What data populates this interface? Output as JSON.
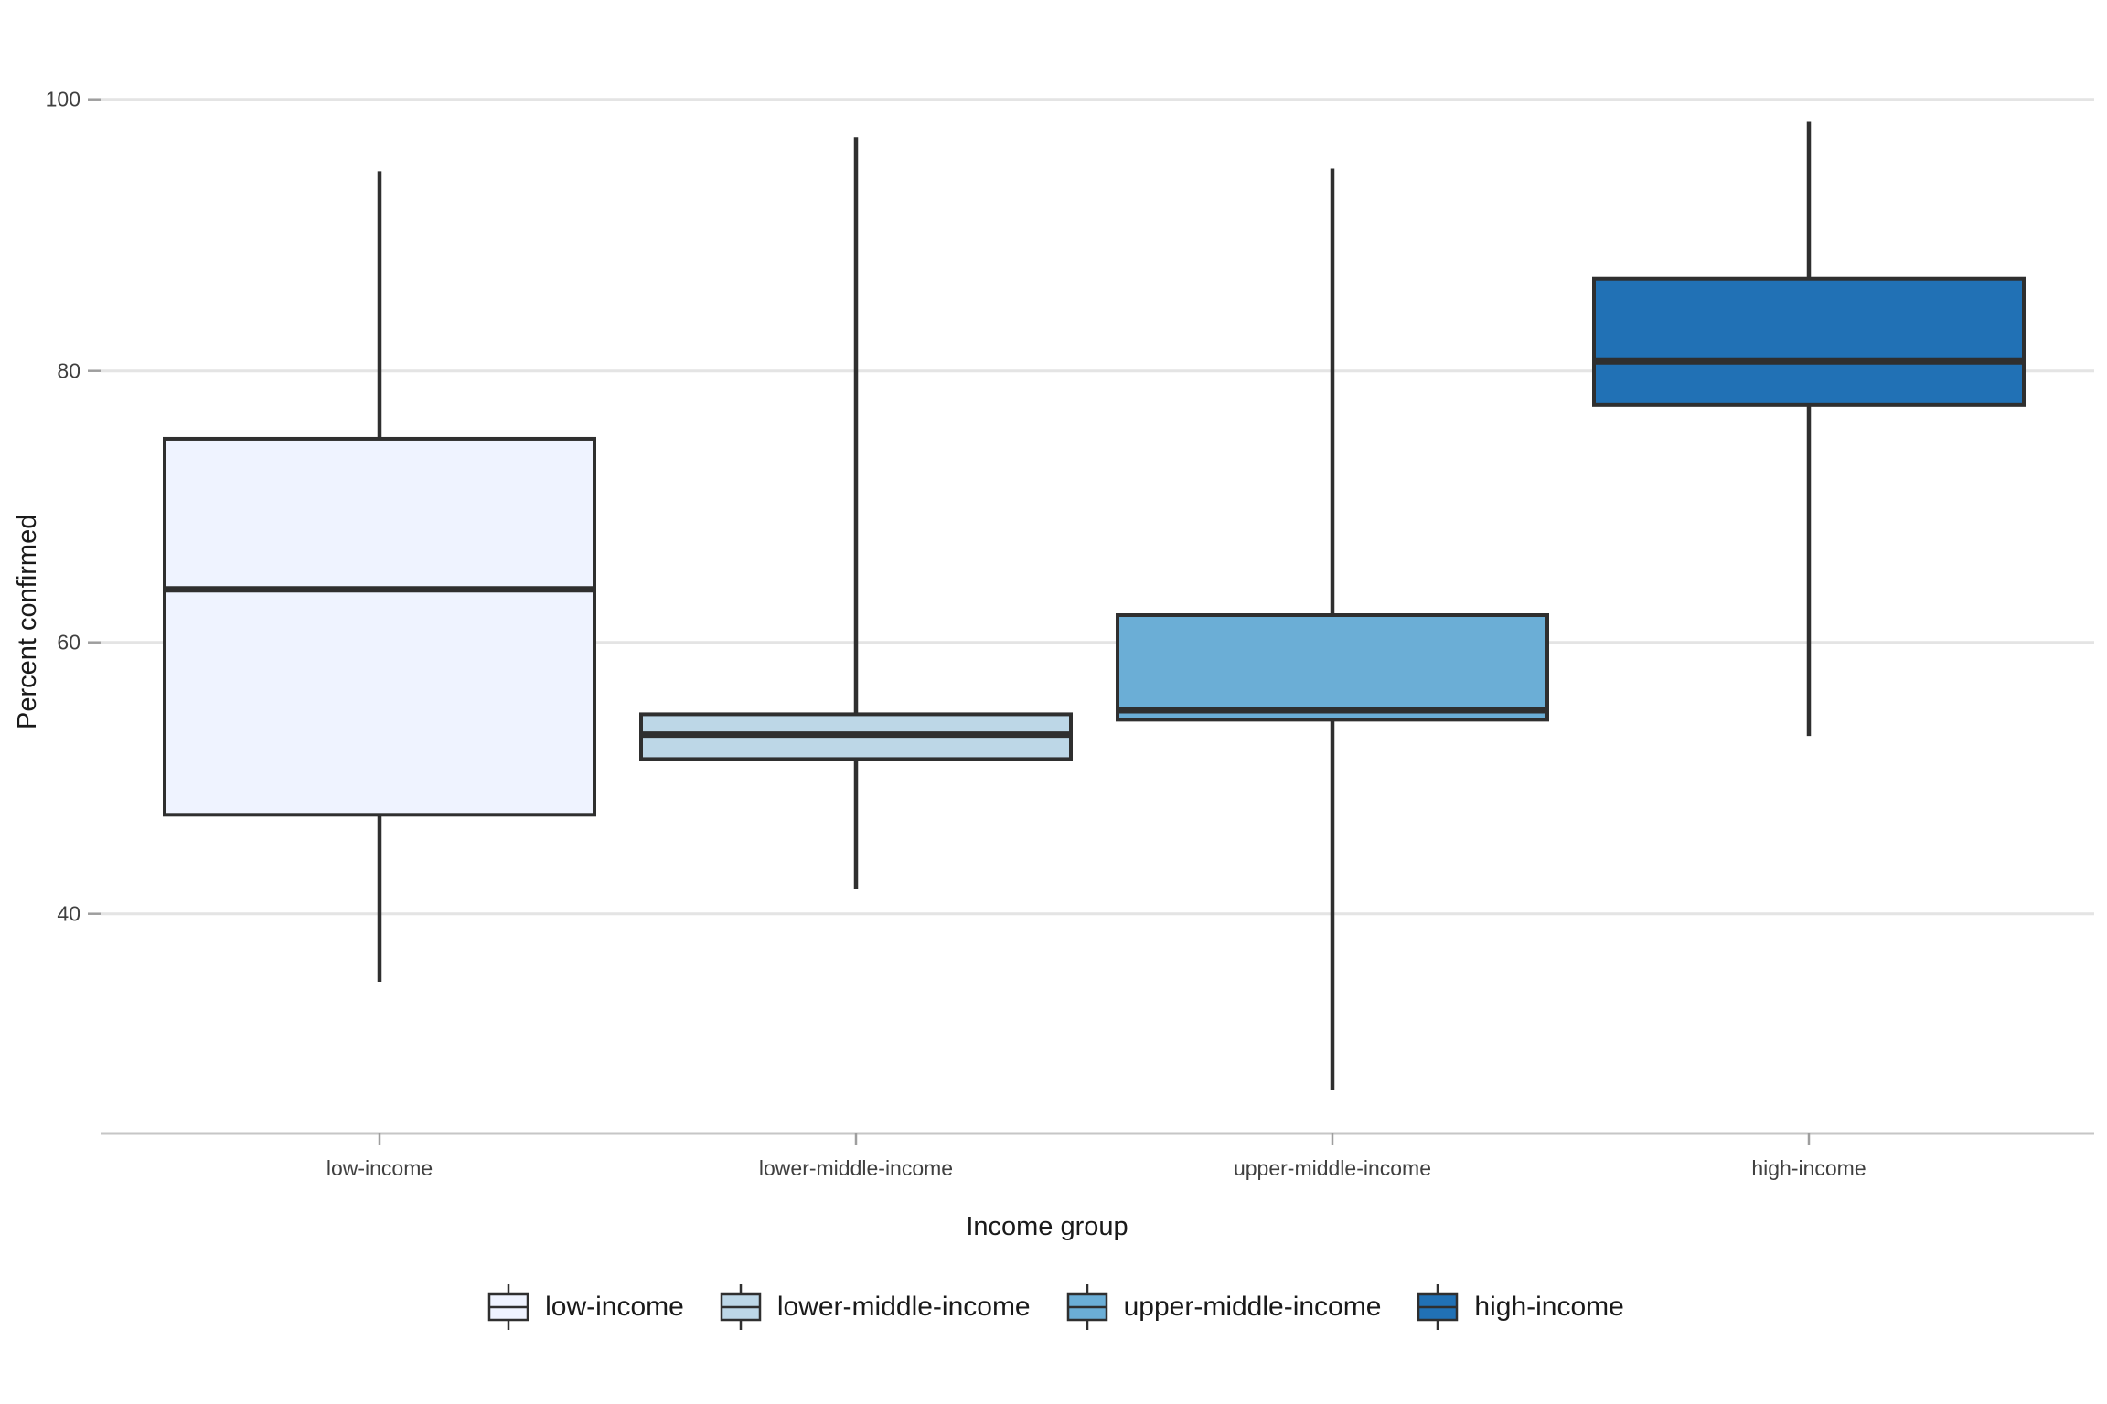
{
  "chart_data": {
    "type": "boxplot",
    "title": "",
    "xlabel": "Income group",
    "ylabel": "Percent confirmed",
    "categories": [
      "low-income",
      "lower-middle-income",
      "upper-middle-income",
      "high-income"
    ],
    "series": [
      {
        "name": "low-income",
        "min": 35.0,
        "q1": 47.3,
        "median": 63.9,
        "q3": 75.0,
        "max": 94.7,
        "fill": "#eff3ff"
      },
      {
        "name": "lower-middle-income",
        "min": 41.8,
        "q1": 51.4,
        "median": 53.2,
        "q3": 54.7,
        "max": 97.2,
        "fill": "#bdd7e7"
      },
      {
        "name": "upper-middle-income",
        "min": 27.0,
        "q1": 54.3,
        "median": 55.0,
        "q3": 62.0,
        "max": 94.9,
        "fill": "#6baed6"
      },
      {
        "name": "high-income",
        "min": 53.1,
        "q1": 77.5,
        "median": 80.7,
        "q3": 86.8,
        "max": 98.4,
        "fill": "#2171b5"
      }
    ],
    "y_ticks": [
      40,
      60,
      80,
      100
    ],
    "ylim": [
      23.8,
      105.3
    ],
    "grid": "horizontal-major-only",
    "legend": {
      "position": "bottom",
      "items": [
        "low-income",
        "lower-middle-income",
        "upper-middle-income",
        "high-income"
      ]
    },
    "colors": {
      "box_border": "#2f2f2f",
      "median_line": "#2f2f2f",
      "gridline": "#e4e4e4",
      "axis_line": "#c6c6c6",
      "tick_mark": "#9e9e9e",
      "tick_label": "#404040",
      "axis_title": "#1a1a1a",
      "background": "#ffffff"
    }
  }
}
